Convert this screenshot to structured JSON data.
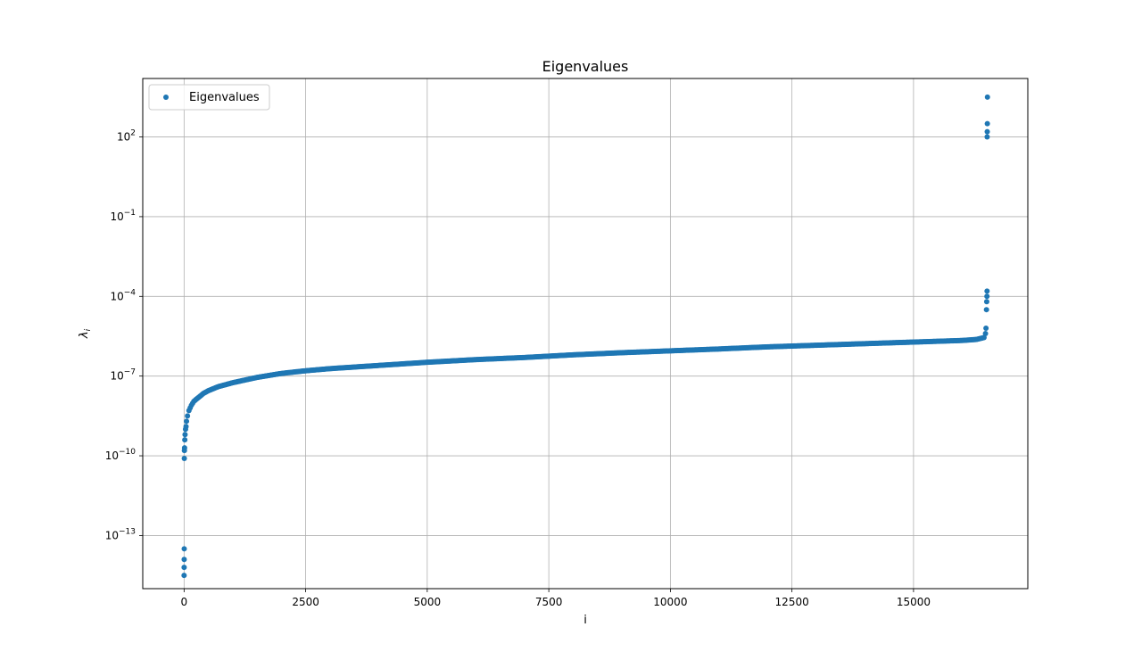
{
  "chart_data": {
    "type": "scatter",
    "title": "Eigenvalues",
    "xlabel": "i",
    "ylabel": "λ",
    "ylabel_subscript": "i",
    "yscale": "log",
    "xlim": [
      -850,
      17350
    ],
    "ylim_log10": [
      -15.0,
      4.2
    ],
    "grid": true,
    "legend": {
      "placement": "top-left",
      "entries": [
        "Eigenvalues"
      ]
    },
    "color": "#1f77b4",
    "xticks": [
      {
        "value": 0,
        "label": "0"
      },
      {
        "value": 2500,
        "label": "2500"
      },
      {
        "value": 5000,
        "label": "5000"
      },
      {
        "value": 7500,
        "label": "7500"
      },
      {
        "value": 10000,
        "label": "10000"
      },
      {
        "value": 12500,
        "label": "12500"
      },
      {
        "value": 15000,
        "label": "15000"
      }
    ],
    "yticks": [
      {
        "exp": 2,
        "base": "10",
        "power": "2"
      },
      {
        "exp": -1,
        "base": "10",
        "power": "−1"
      },
      {
        "exp": -4,
        "base": "10",
        "power": "−4"
      },
      {
        "exp": -7,
        "base": "10",
        "power": "−7"
      },
      {
        "exp": -10,
        "base": "10",
        "power": "−10"
      },
      {
        "exp": -13,
        "base": "10",
        "power": "−13"
      }
    ],
    "series": [
      {
        "name": "Eigenvalues",
        "x": [
          0,
          1,
          2,
          3,
          5,
          7,
          10,
          15,
          20,
          30,
          40,
          50,
          70,
          100,
          150,
          200,
          300,
          400,
          500,
          700,
          1000,
          1500,
          2000,
          2500,
          3000,
          4000,
          5000,
          6000,
          7000,
          7500,
          8000,
          9000,
          10000,
          11000,
          12000,
          12500,
          13000,
          14000,
          15000,
          15500,
          16000,
          16300,
          16450,
          16480,
          16490,
          16500,
          16505,
          16510,
          16512,
          16514,
          16516,
          16518,
          16520
        ],
        "log10_y": [
          -14.5,
          -14.2,
          -13.9,
          -13.5,
          -10.1,
          -9.8,
          -9.7,
          -9.4,
          -9.2,
          -9.0,
          -8.9,
          -8.7,
          -8.5,
          -8.3,
          -8.1,
          -7.95,
          -7.8,
          -7.65,
          -7.55,
          -7.4,
          -7.25,
          -7.05,
          -6.9,
          -6.8,
          -6.72,
          -6.6,
          -6.48,
          -6.38,
          -6.3,
          -6.25,
          -6.2,
          -6.12,
          -6.05,
          -5.98,
          -5.9,
          -5.87,
          -5.84,
          -5.78,
          -5.72,
          -5.69,
          -5.66,
          -5.62,
          -5.55,
          -5.4,
          -5.2,
          -4.5,
          -4.2,
          -4.0,
          -3.8,
          2.0,
          2.2,
          2.5,
          3.5
        ]
      }
    ]
  }
}
